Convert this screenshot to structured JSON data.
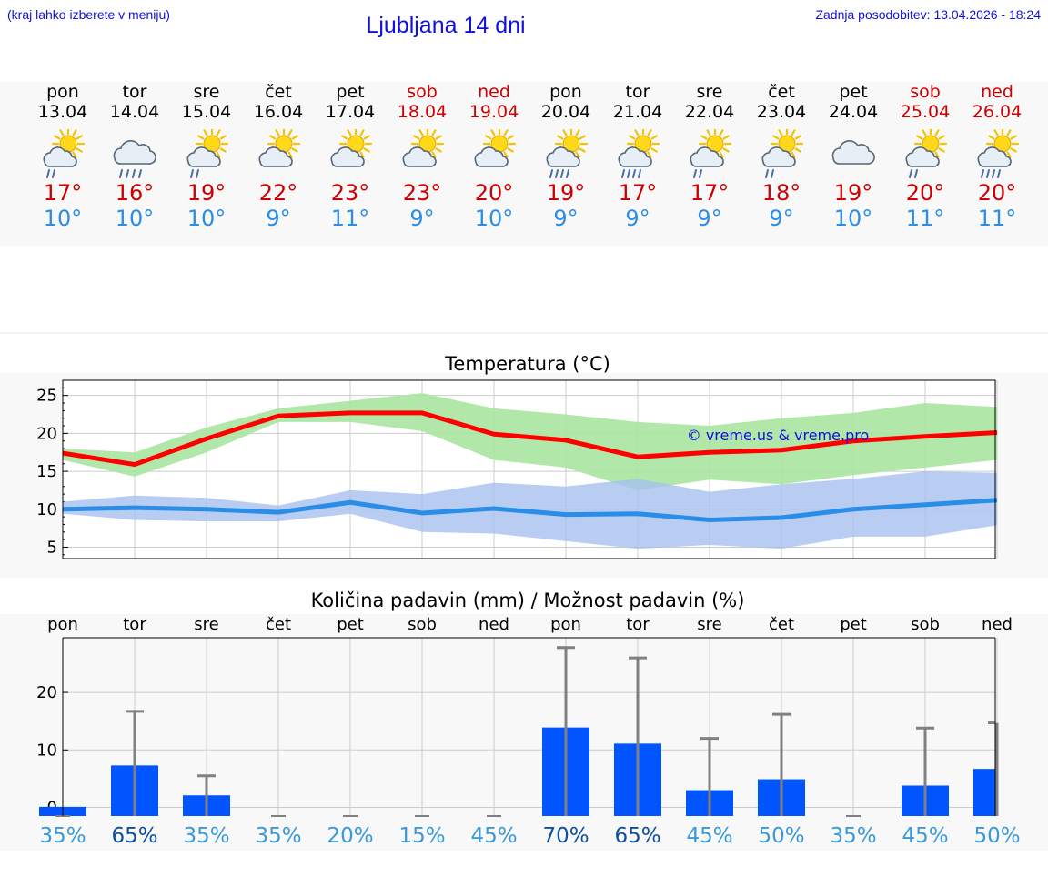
{
  "header": {
    "hint": "(kraj lahko izberete v meniju)",
    "title": "Ljubljana 14 dni",
    "updated": "Zadnja posodobitev: 13.04.2026 - 18:24"
  },
  "colors": {
    "weekday": "#000000",
    "weekend": "#cc0000",
    "max": "#cc0000",
    "min": "#2a8de8",
    "bar": "#0055ff"
  },
  "days": [
    {
      "name": "pon",
      "date": "13.04",
      "max": "17°",
      "min": "10°",
      "icon": "sun-cloud-rain-icon",
      "weekend": false
    },
    {
      "name": "tor",
      "date": "14.04",
      "max": "16°",
      "min": "10°",
      "icon": "cloud-heavy-rain-icon",
      "weekend": false
    },
    {
      "name": "sre",
      "date": "15.04",
      "max": "19°",
      "min": "10°",
      "icon": "sun-cloud-rain-icon",
      "weekend": false
    },
    {
      "name": "čet",
      "date": "16.04",
      "max": "22°",
      "min": "9°",
      "icon": "sun-cloud-icon",
      "weekend": false
    },
    {
      "name": "pet",
      "date": "17.04",
      "max": "23°",
      "min": "11°",
      "icon": "sun-cloud-icon",
      "weekend": false
    },
    {
      "name": "sob",
      "date": "18.04",
      "max": "23°",
      "min": "9°",
      "icon": "sun-cloud-icon",
      "weekend": true
    },
    {
      "name": "ned",
      "date": "19.04",
      "max": "20°",
      "min": "10°",
      "icon": "sun-cloud-icon",
      "weekend": true
    },
    {
      "name": "pon",
      "date": "20.04",
      "max": "19°",
      "min": "9°",
      "icon": "sun-cloud-heavy-rain-icon",
      "weekend": false
    },
    {
      "name": "tor",
      "date": "21.04",
      "max": "17°",
      "min": "9°",
      "icon": "sun-cloud-heavy-rain-icon",
      "weekend": false
    },
    {
      "name": "sre",
      "date": "22.04",
      "max": "17°",
      "min": "9°",
      "icon": "sun-cloud-rain-icon",
      "weekend": false
    },
    {
      "name": "čet",
      "date": "23.04",
      "max": "18°",
      "min": "9°",
      "icon": "sun-cloud-rain-icon",
      "weekend": false
    },
    {
      "name": "pet",
      "date": "24.04",
      "max": "19°",
      "min": "10°",
      "icon": "cloud-icon",
      "weekend": false
    },
    {
      "name": "sob",
      "date": "25.04",
      "max": "20°",
      "min": "11°",
      "icon": "sun-cloud-rain-icon",
      "weekend": true
    },
    {
      "name": "ned",
      "date": "26.04",
      "max": "20°",
      "min": "11°",
      "icon": "sun-cloud-heavy-rain-icon",
      "weekend": true
    }
  ],
  "chart_data": [
    {
      "type": "line",
      "title": "Temperatura (°C)",
      "watermark": "© vreme.us & vreme.pro",
      "ylim": [
        3.5,
        27
      ],
      "yticks": [
        5,
        10,
        15,
        20,
        25
      ],
      "grid": true,
      "x": [
        0,
        1,
        2,
        3,
        4,
        5,
        6,
        7,
        8,
        9,
        10,
        11,
        12,
        13
      ],
      "series": [
        {
          "role": "max",
          "color": "#ff0000",
          "values": [
            17.4,
            15.9,
            19.3,
            22.3,
            22.7,
            22.7,
            19.9,
            19.1,
            16.9,
            17.5,
            17.8,
            19.0,
            19.6,
            20.1
          ]
        },
        {
          "role": "min",
          "color": "#2a8de8",
          "values": [
            10.0,
            10.2,
            10.0,
            9.6,
            10.9,
            9.5,
            10.1,
            9.3,
            9.4,
            8.6,
            8.9,
            10.0,
            10.6,
            11.2
          ]
        }
      ],
      "bands": [
        {
          "role": "max-range",
          "color": "#a8e6a0",
          "low": [
            16.5,
            14.3,
            17.5,
            21.5,
            21.5,
            20.3,
            16.5,
            15.5,
            12.5,
            13.9,
            13.3,
            14.5,
            15.5,
            16.5
          ],
          "high": [
            18.0,
            17.5,
            20.8,
            23.3,
            24.3,
            25.3,
            23.3,
            22.5,
            21.5,
            21.0,
            22.0,
            22.7,
            24.0,
            23.5
          ]
        },
        {
          "role": "min-range",
          "color": "#a8c0f0",
          "low": [
            9.4,
            8.6,
            8.4,
            8.4,
            9.4,
            7.0,
            6.8,
            5.8,
            4.8,
            5.3,
            4.8,
            6.4,
            6.4,
            7.9
          ]
        },
        {
          "role": "min-range-high",
          "values": [
            11.0,
            11.8,
            11.5,
            10.5,
            12.5,
            12.0,
            13.5,
            13.0,
            14.0,
            12.3,
            13.3,
            14.0,
            15.0,
            14.8
          ]
        }
      ]
    },
    {
      "type": "bar",
      "title": "Količina padavin (mm) / Možnost padavin (%)",
      "categories": [
        "pon",
        "tor",
        "sre",
        "čet",
        "pet",
        "sob",
        "ned",
        "pon",
        "tor",
        "sre",
        "čet",
        "pet",
        "sob",
        "ned"
      ],
      "ylim": [
        -1.5,
        29.5
      ],
      "yticks": [
        0,
        10,
        20
      ],
      "values": [
        0.1,
        7.3,
        2.1,
        0,
        0,
        0,
        0,
        13.9,
        11.1,
        3.0,
        4.9,
        0,
        3.8,
        6.7
      ],
      "error_high": [
        0,
        16.7,
        5.5,
        0,
        0,
        0,
        0,
        27.8,
        26.0,
        12.0,
        16.2,
        0,
        13.8,
        14.7
      ],
      "probability": [
        "35%",
        "65%",
        "35%",
        "35%",
        "20%",
        "15%",
        "45%",
        "70%",
        "65%",
        "45%",
        "50%",
        "35%",
        "45%",
        "50%"
      ]
    }
  ]
}
